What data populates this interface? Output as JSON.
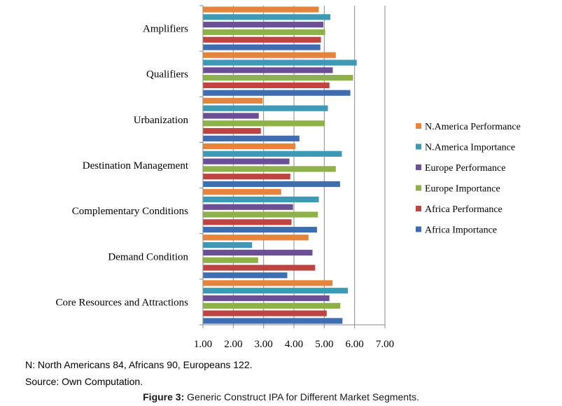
{
  "chart_data": {
    "type": "bar",
    "orientation": "horizontal",
    "categories": [
      "Amplifiers",
      "Qualifiers",
      "Urbanization",
      "Destination Management",
      "Complementary Conditions",
      "Demand Condition",
      "Core Resources and Attractions"
    ],
    "series": [
      {
        "name": "N.America Performance",
        "color": "#E5843A",
        "values": [
          4.82,
          5.38,
          2.97,
          4.05,
          3.58,
          4.48,
          5.27
        ]
      },
      {
        "name": "N.America Importance",
        "color": "#3E9AB4",
        "values": [
          5.2,
          6.07,
          5.12,
          5.58,
          4.82,
          2.62,
          5.78
        ]
      },
      {
        "name": "Europe Performance",
        "color": "#6A4E96",
        "values": [
          4.97,
          5.28,
          2.84,
          3.85,
          3.97,
          4.61,
          5.17
        ]
      },
      {
        "name": "Europe Importance",
        "color": "#8EB149",
        "values": [
          5.03,
          5.95,
          5.02,
          5.38,
          4.79,
          2.82,
          5.53
        ]
      },
      {
        "name": "Africa Performance",
        "color": "#BE4442",
        "values": [
          4.89,
          5.17,
          2.91,
          3.88,
          3.92,
          4.7,
          5.08
        ]
      },
      {
        "name": "Africa Importance",
        "color": "#3F6DB1",
        "values": [
          4.87,
          5.86,
          4.18,
          5.52,
          4.76,
          3.78,
          5.6
        ]
      }
    ],
    "xlim": [
      1.0,
      7.0
    ],
    "xticks": [
      "1.00",
      "2.00",
      "3.00",
      "4.00",
      "5.00",
      "6.00",
      "7.00"
    ],
    "grid": "vertical",
    "legend_position": "right"
  },
  "notes": {
    "sample": "N: North Americans 84, Africans 90, Europeans 122.",
    "source": "Source: Own Computation."
  },
  "caption": {
    "label": "Figure 3:",
    "text": " Generic Construct IPA for Different Market Segments."
  }
}
